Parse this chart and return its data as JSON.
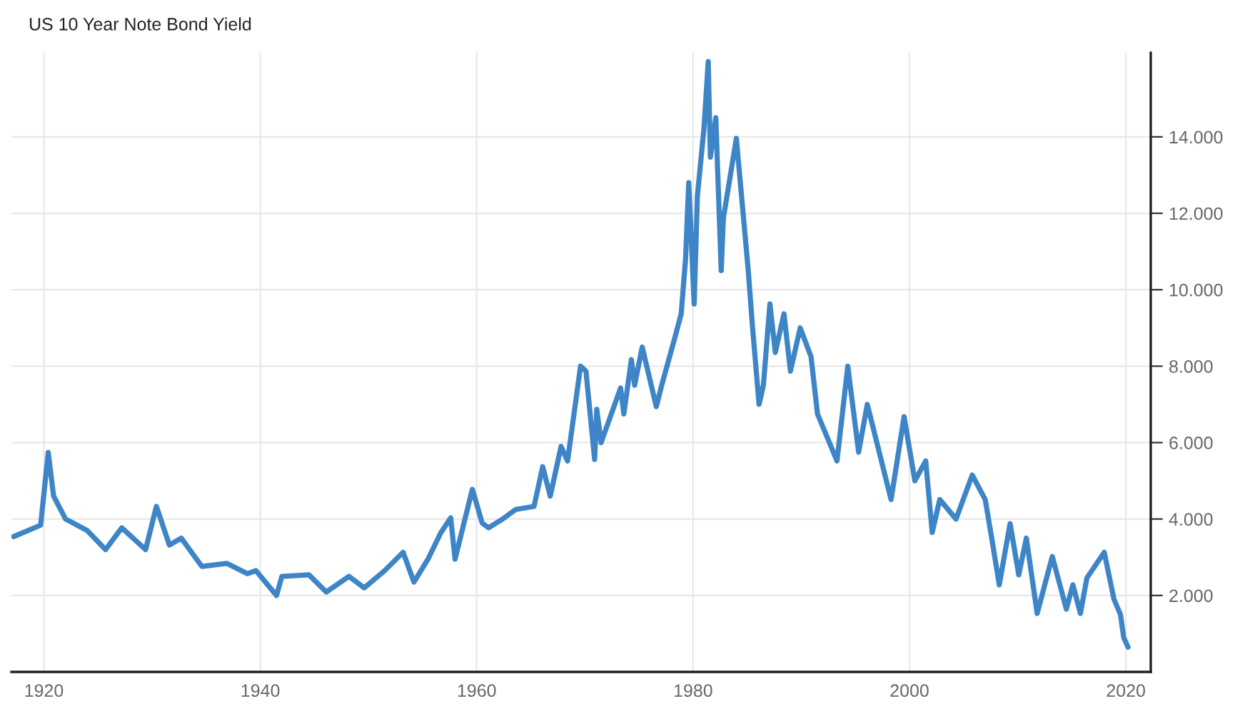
{
  "chart_data": {
    "type": "line",
    "title": "US 10 Year Note Bond Yield",
    "x": [
      1917.2,
      1919.7,
      1920.4,
      1920.9,
      1922,
      1924,
      1925.7,
      1927.2,
      1929.4,
      1930.4,
      1931.6,
      1932.7,
      1934.6,
      1936.9,
      1938.8,
      1939.6,
      1941.5,
      1942,
      1944.5,
      1946.1,
      1948.2,
      1949.6,
      1951.5,
      1953.2,
      1954.2,
      1955.5,
      1956.7,
      1957.6,
      1958,
      1959.6,
      1960.5,
      1961.1,
      1962.4,
      1963.6,
      1965.3,
      1966.1,
      1966.8,
      1967.8,
      1968.4,
      1969.6,
      1970.1,
      1970.9,
      1971.1,
      1971.5,
      1973.3,
      1973.6,
      1974.3,
      1974.6,
      1975.3,
      1976.6,
      1977.1,
      1978.3,
      1978.9,
      1979.3,
      1979.6,
      1980.1,
      1980.4,
      1981,
      1981.4,
      1981.6,
      1982.1,
      1982.6,
      1982.8,
      1984,
      1985.1,
      1985.5,
      1986.1,
      1986.5,
      1987.1,
      1987.6,
      1988.4,
      1989,
      1989.9,
      1990.9,
      1991.5,
      1993.3,
      1994.3,
      1995.3,
      1996.1,
      1998.3,
      1999.5,
      2000.5,
      2001.5,
      2002.1,
      2002.8,
      2004.3,
      2005.8,
      2007,
      2007.6,
      2008.3,
      2009.3,
      2010.1,
      2010.8,
      2011.8,
      2013.2,
      2014.5,
      2015.1,
      2015.8,
      2016.4,
      2018,
      2018.9,
      2019.5,
      2019.8,
      2020.2
    ],
    "series": [
      {
        "color": "#3d85c6",
        "values": [
          3.54,
          3.84,
          5.74,
          4.6,
          4.0,
          3.7,
          3.2,
          3.77,
          3.2,
          4.33,
          3.32,
          3.5,
          2.76,
          2.84,
          2.57,
          2.65,
          2.0,
          2.5,
          2.54,
          2.09,
          2.5,
          2.2,
          2.65,
          3.13,
          2.35,
          2.95,
          3.65,
          4.03,
          2.95,
          4.78,
          3.9,
          3.77,
          4.0,
          4.25,
          4.33,
          5.37,
          4.6,
          5.9,
          5.52,
          8.0,
          7.87,
          5.56,
          6.87,
          6.0,
          7.43,
          6.75,
          8.17,
          7.5,
          8.5,
          6.94,
          7.5,
          8.73,
          9.37,
          10.78,
          12.8,
          9.63,
          12.46,
          14.2,
          15.97,
          13.47,
          14.5,
          10.5,
          11.87,
          13.96,
          10.5,
          9.0,
          7.0,
          7.5,
          9.63,
          8.36,
          9.37,
          7.87,
          9.0,
          8.25,
          6.75,
          5.52,
          8.0,
          5.75,
          7.0,
          4.51,
          6.68,
          5.0,
          5.52,
          3.65,
          4.51,
          4.0,
          5.15,
          4.51,
          3.5,
          2.28,
          3.88,
          2.54,
          3.5,
          1.53,
          3.02,
          1.64,
          2.28,
          1.53,
          2.46,
          3.13,
          1.9,
          1.5,
          0.9,
          0.65
        ]
      }
    ],
    "xlim": [
      1917,
      2022.3
    ],
    "xticks": [
      1920,
      1940,
      1960,
      1980,
      2000,
      2020
    ],
    "ylim": [
      0,
      16.2
    ],
    "yticks": [
      {
        "value": 2,
        "label": "2.000"
      },
      {
        "value": 4,
        "label": "4.000"
      },
      {
        "value": 6,
        "label": "6.000"
      },
      {
        "value": 8,
        "label": "8.000"
      },
      {
        "value": 10,
        "label": "10.000"
      },
      {
        "value": 12,
        "label": "12.000"
      },
      {
        "value": 14,
        "label": "14.000"
      }
    ],
    "grid": true,
    "line_style": "solid",
    "marker": "none"
  }
}
